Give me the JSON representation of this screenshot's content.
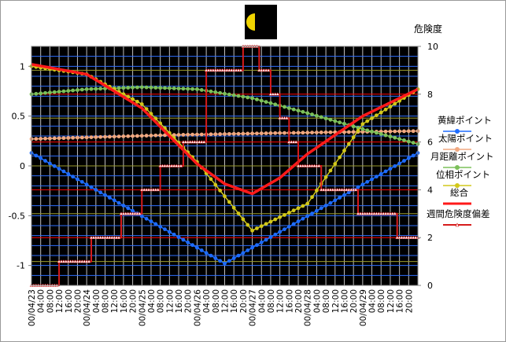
{
  "chart_data": {
    "type": "line",
    "y2_title": "危険度",
    "left_axis": {
      "ylim": [
        -1.2,
        1.2
      ],
      "ticks": [
        -1,
        -0.5,
        0,
        0.5,
        1
      ],
      "tick_labels": [
        "-1",
        "-0.5",
        "0",
        "0.5",
        "1"
      ]
    },
    "right_axis": {
      "ylim": [
        0,
        10
      ],
      "ticks": [
        0,
        2,
        4,
        6,
        8,
        10
      ],
      "tick_labels": [
        "0",
        "2",
        "4",
        "6",
        "8",
        "10"
      ]
    },
    "x_hours": [
      0,
      168
    ],
    "x_tick_labels": [
      "00/04/23",
      "04:00",
      "08:00",
      "12:00",
      "16:00",
      "20:00",
      "00/04/24",
      "04:00",
      "08:00",
      "12:00",
      "16:00",
      "20:00",
      "00/04/25",
      "04:00",
      "08:00",
      "12:00",
      "16:00",
      "20:00",
      "00/04/26",
      "04:00",
      "08:00",
      "12:00",
      "16:00",
      "20:00",
      "00/04/27",
      "04:00",
      "08:00",
      "12:00",
      "16:00",
      "20:00",
      "00/04/28",
      "04:00",
      "08:00",
      "12:00",
      "16:00",
      "20:00",
      "00/04/29",
      "04:00",
      "08:00",
      "12:00",
      "16:00",
      "20:00"
    ],
    "legend": [
      "黄緯ポイント",
      "太陽ポイント",
      "月距離ポイント",
      "位相ポイント",
      "総合",
      "週間危険度偏差"
    ],
    "legend_position": "right",
    "grid": true,
    "moon_phase_icon": "half-moon-icon",
    "colors": {
      "plot_bg": "#000000",
      "vgrid": "#ffffff",
      "hgrid_left": "#2f6fff",
      "hgrid_mid": "#9c9c2c",
      "hgrid_red": "#ff0000",
      "blue": "#1e6cff",
      "salmon": "#f0a880",
      "green": "#7cc05a",
      "olive": "#d2c81a",
      "red": "#ff1a1a",
      "step": "#d61c1c",
      "step_marker": "#ffffff"
    },
    "series": [
      {
        "name": "黄緯ポイント",
        "axis": "left",
        "x": [
          0,
          84,
          168
        ],
        "y": [
          0.13,
          -0.98,
          0.13
        ]
      },
      {
        "name": "太陽ポイント",
        "axis": "left",
        "x": [
          0,
          60,
          108,
          168
        ],
        "y": [
          0.27,
          0.31,
          0.33,
          0.35
        ]
      },
      {
        "name": "月距離ポイント",
        "axis": "left",
        "x": [
          0,
          24,
          48,
          72,
          96,
          120,
          144,
          168
        ],
        "y": [
          0.72,
          0.77,
          0.79,
          0.77,
          0.68,
          0.53,
          0.37,
          0.22
        ]
      },
      {
        "name": "位相ポイント",
        "axis": "left",
        "x": [
          0,
          24,
          48,
          72,
          96,
          120,
          144,
          168
        ],
        "y": [
          1.0,
          0.92,
          0.62,
          0.04,
          -0.65,
          -0.38,
          0.42,
          0.77
        ]
      },
      {
        "name": "総合",
        "axis": "left",
        "x": [
          0,
          24,
          48,
          60,
          72,
          84,
          96,
          108,
          120,
          144,
          168
        ],
        "y": [
          1.02,
          0.92,
          0.58,
          0.3,
          0.02,
          -0.18,
          -0.28,
          -0.12,
          0.12,
          0.5,
          0.77
        ]
      },
      {
        "name": "週間危険度偏差",
        "axis": "right",
        "type": "step",
        "x": [
          0,
          7,
          12,
          16,
          22,
          26,
          30,
          35,
          39,
          44,
          48,
          52,
          56,
          61,
          66,
          70,
          76,
          84,
          92,
          96,
          99,
          104,
          108,
          112,
          116,
          120,
          126,
          132,
          137,
          142,
          148,
          154,
          159,
          162,
          168
        ],
        "y": [
          0,
          0,
          1,
          1,
          1,
          2,
          2,
          2,
          3,
          3,
          4,
          4,
          5,
          5,
          6,
          6,
          9,
          9,
          10,
          10,
          9,
          8,
          7,
          6,
          5,
          5,
          4,
          4,
          4,
          3,
          3,
          3,
          2,
          2,
          2
        ]
      }
    ]
  }
}
